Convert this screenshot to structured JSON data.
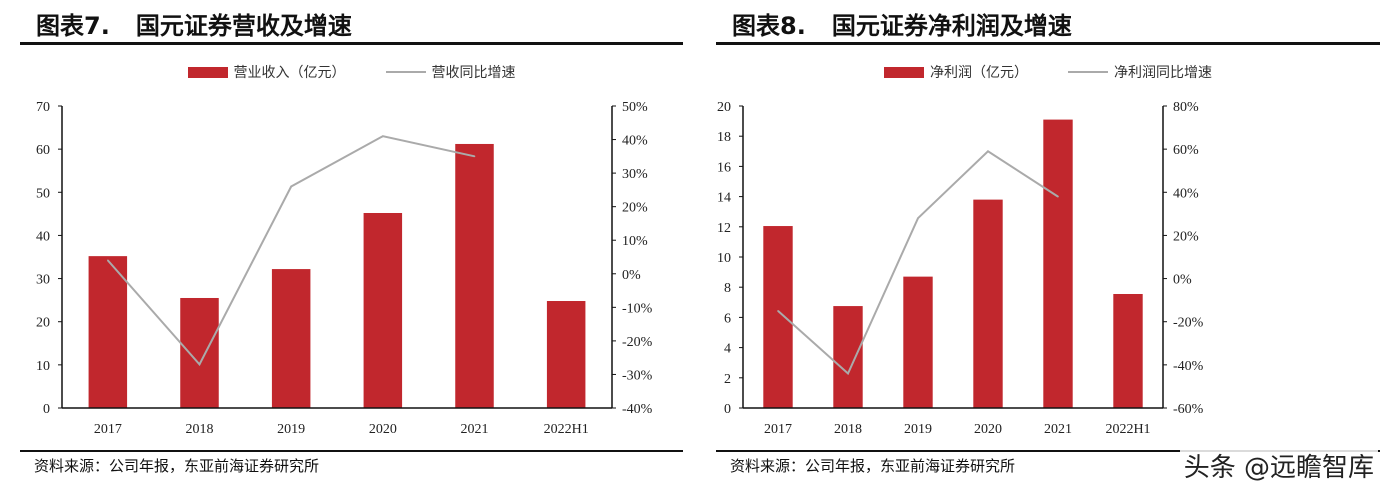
{
  "colors": {
    "bar": "#c1272d",
    "line": "#aaaaaa",
    "axis": "#111111"
  },
  "watermark": "头条 @远瞻智库",
  "chart_data": [
    {
      "type": "bar+line",
      "figure_label": "图表7.",
      "title": "国元证券营收及增速",
      "legend_position": "top",
      "categories": [
        "2017",
        "2018",
        "2019",
        "2020",
        "2021",
        "2022H1"
      ],
      "series": [
        {
          "name": "营业收入（亿元）",
          "type": "bar",
          "axis": "left",
          "values": [
            35.2,
            25.5,
            32.2,
            45.2,
            61.2,
            24.8
          ]
        },
        {
          "name": "营收同比增速",
          "type": "line",
          "axis": "right",
          "values": [
            4,
            -27,
            26,
            41,
            35,
            null
          ]
        }
      ],
      "ylim_left": [
        0,
        70
      ],
      "yticks_left": [
        "0",
        "10",
        "20",
        "30",
        "40",
        "50",
        "60",
        "70"
      ],
      "ylim_right": [
        -40,
        50
      ],
      "yticks_right": [
        "-40%",
        "-30%",
        "-20%",
        "-10%",
        "0%",
        "10%",
        "20%",
        "30%",
        "40%",
        "50%"
      ],
      "grid": false,
      "source": "资料来源：公司年报，东亚前海证券研究所"
    },
    {
      "type": "bar+line",
      "figure_label": "图表8.",
      "title": "国元证券净利润及增速",
      "legend_position": "top",
      "categories": [
        "2017",
        "2018",
        "2019",
        "2020",
        "2021",
        "2022H1"
      ],
      "series": [
        {
          "name": "净利润（亿元）",
          "type": "bar",
          "axis": "left",
          "values": [
            12.05,
            6.75,
            8.7,
            13.8,
            19.1,
            7.55
          ]
        },
        {
          "name": "净利润同比增速",
          "type": "line",
          "axis": "right",
          "values": [
            -15,
            -44,
            28,
            59,
            38,
            null
          ]
        }
      ],
      "ylim_left": [
        0,
        20
      ],
      "yticks_left": [
        "0",
        "2",
        "4",
        "6",
        "8",
        "10",
        "12",
        "14",
        "16",
        "18",
        "20"
      ],
      "ylim_right": [
        -60,
        80
      ],
      "yticks_right": [
        "-60%",
        "-40%",
        "-20%",
        "0%",
        "20%",
        "40%",
        "60%",
        "80%"
      ],
      "grid": false,
      "source": "资料来源：公司年报，东亚前海证券研究所"
    }
  ]
}
